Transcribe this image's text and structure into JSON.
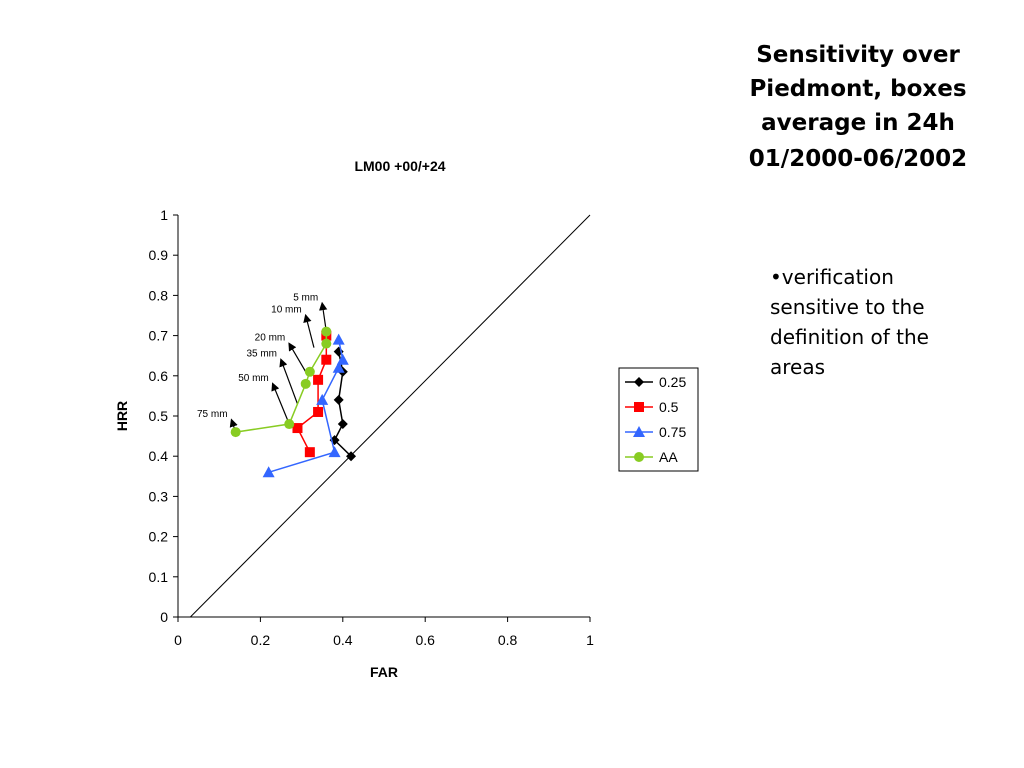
{
  "slide": {
    "title_lines": [
      "Sensitivity over",
      "Piedmont, boxes",
      "average in 24h"
    ],
    "date_range": "01/2000-06/2002",
    "bullet": "•verification sensitive to the definition of the areas"
  },
  "chart_data": {
    "type": "scatter",
    "title": "LM00 +00/+24",
    "xlabel": "FAR",
    "ylabel": "HRR",
    "xlim": [
      0,
      1
    ],
    "ylim": [
      0,
      1
    ],
    "xticks": [
      "0",
      "0.2",
      "0.4",
      "0.6",
      "0.8",
      "1"
    ],
    "yticks": [
      "0",
      "0.1",
      "0.2",
      "0.3",
      "0.4",
      "0.5",
      "0.6",
      "0.7",
      "0.8",
      "0.9",
      "1"
    ],
    "grid": false,
    "legend": "right",
    "reference_line": [
      [
        0.03,
        0
      ],
      [
        1,
        1
      ]
    ],
    "series": [
      {
        "name": "0.25",
        "color": "#000000",
        "marker": "diamond",
        "points": [
          [
            0.42,
            0.4
          ],
          [
            0.38,
            0.44
          ],
          [
            0.4,
            0.48
          ],
          [
            0.39,
            0.54
          ],
          [
            0.4,
            0.61
          ],
          [
            0.39,
            0.66
          ]
        ]
      },
      {
        "name": "0.5",
        "color": "#ff0000",
        "marker": "square",
        "points": [
          [
            0.32,
            0.41
          ],
          [
            0.29,
            0.47
          ],
          [
            0.34,
            0.51
          ],
          [
            0.34,
            0.59
          ],
          [
            0.36,
            0.64
          ],
          [
            0.36,
            0.7
          ]
        ]
      },
      {
        "name": "0.75",
        "color": "#3366ff",
        "marker": "triangle",
        "points": [
          [
            0.22,
            0.36
          ],
          [
            0.38,
            0.41
          ],
          [
            0.35,
            0.54
          ],
          [
            0.39,
            0.62
          ],
          [
            0.4,
            0.64
          ],
          [
            0.39,
            0.69
          ]
        ]
      },
      {
        "name": "AA",
        "color": "#88cc22",
        "marker": "circle",
        "points": [
          [
            0.14,
            0.46
          ],
          [
            0.27,
            0.48
          ],
          [
            0.31,
            0.58
          ],
          [
            0.32,
            0.61
          ],
          [
            0.36,
            0.68
          ],
          [
            0.36,
            0.71
          ]
        ]
      }
    ],
    "annotations": [
      {
        "text": "5 mm",
        "from": [
          0.36,
          0.71
        ],
        "to": [
          0.35,
          0.78
        ]
      },
      {
        "text": "10 mm",
        "from": [
          0.33,
          0.67
        ],
        "to": [
          0.31,
          0.75
        ]
      },
      {
        "text": "20 mm",
        "from": [
          0.31,
          0.61
        ],
        "to": [
          0.27,
          0.68
        ]
      },
      {
        "text": "35 mm",
        "from": [
          0.29,
          0.53
        ],
        "to": [
          0.25,
          0.64
        ]
      },
      {
        "text": "50 mm",
        "from": [
          0.27,
          0.48
        ],
        "to": [
          0.23,
          0.58
        ]
      },
      {
        "text": "75 mm",
        "from": [
          0.14,
          0.46
        ],
        "to": [
          0.13,
          0.49
        ]
      }
    ]
  }
}
